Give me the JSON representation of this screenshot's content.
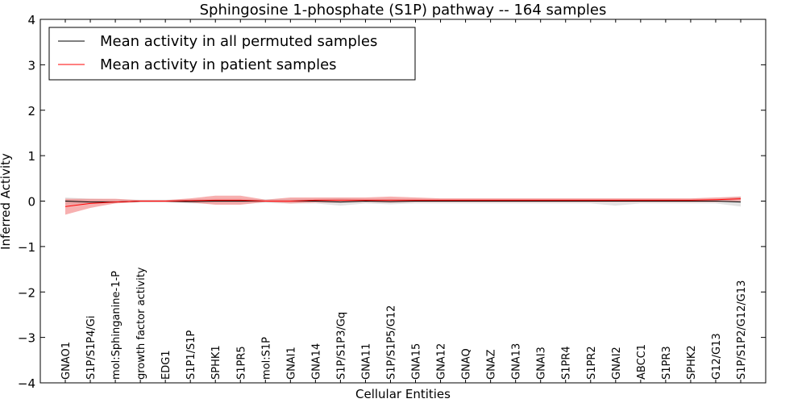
{
  "chart_data": {
    "type": "line",
    "title": "Sphingosine 1-phosphate (S1P) pathway -- 164 samples",
    "xlabel": "Cellular Entities",
    "ylabel": "Inferred Activity",
    "ylim": [
      -4,
      4
    ],
    "yticks": [
      "4",
      "3",
      "2",
      "1",
      "0",
      "−1",
      "−2",
      "−3",
      "−4"
    ],
    "categories": [
      "GNAO1",
      "S1P/S1P4/Gi",
      "mol:Sphinganine-1-P",
      "growth factor activity",
      "EDG1",
      "S1P1/S1P",
      "SPHK1",
      "S1PR5",
      "mol:S1P",
      "GNAI1",
      "GNA14",
      "S1P/S1P3/Gq",
      "GNA11",
      "S1P/S1P5/G12",
      "GNA15",
      "GNA12",
      "GNAQ",
      "GNAZ",
      "GNA13",
      "GNAI3",
      "S1PR4",
      "S1PR2",
      "GNAI2",
      "ABCC1",
      "S1PR3",
      "SPHK2",
      "G12/G13",
      "S1P/S1P2/G12/G13"
    ],
    "grid": false,
    "legend_position": "top-left",
    "series": [
      {
        "name": "Mean activity in all permuted samples",
        "color": "#000000",
        "fill": "#b0b0b0",
        "values": [
          0.0,
          -0.02,
          -0.02,
          0.0,
          0.0,
          -0.01,
          0.0,
          0.0,
          0.0,
          0.0,
          0.0,
          -0.02,
          0.0,
          -0.01,
          0.0,
          0.0,
          0.0,
          0.0,
          0.0,
          0.0,
          0.0,
          0.0,
          0.0,
          0.0,
          0.0,
          0.0,
          0.0,
          -0.02
        ],
        "lower": [
          -0.08,
          -0.06,
          -0.04,
          -0.03,
          -0.03,
          -0.05,
          -0.05,
          -0.05,
          -0.04,
          -0.05,
          -0.05,
          -0.1,
          -0.05,
          -0.07,
          -0.05,
          -0.05,
          -0.05,
          -0.05,
          -0.05,
          -0.05,
          -0.05,
          -0.05,
          -0.1,
          -0.05,
          -0.05,
          -0.05,
          -0.05,
          -0.12
        ],
        "upper": [
          0.08,
          0.05,
          0.04,
          0.03,
          0.03,
          0.04,
          0.05,
          0.05,
          0.04,
          0.05,
          0.05,
          0.06,
          0.05,
          0.05,
          0.05,
          0.05,
          0.05,
          0.05,
          0.05,
          0.05,
          0.05,
          0.05,
          0.05,
          0.05,
          0.05,
          0.05,
          0.05,
          0.1
        ]
      },
      {
        "name": "Mean activity in patient samples",
        "color": "#ff0000",
        "fill": "#f07070",
        "values": [
          -0.12,
          -0.05,
          -0.02,
          0.0,
          0.0,
          0.01,
          0.02,
          0.02,
          0.0,
          0.0,
          0.02,
          0.02,
          0.02,
          0.02,
          0.02,
          0.02,
          0.02,
          0.02,
          0.02,
          0.02,
          0.02,
          0.02,
          0.02,
          0.02,
          0.02,
          0.02,
          0.03,
          0.05
        ],
        "lower": [
          -0.3,
          -0.15,
          -0.05,
          -0.02,
          -0.02,
          -0.03,
          -0.08,
          -0.08,
          -0.02,
          -0.05,
          -0.03,
          -0.03,
          -0.02,
          -0.03,
          -0.02,
          -0.02,
          -0.02,
          -0.02,
          -0.02,
          -0.02,
          -0.02,
          -0.02,
          -0.02,
          -0.02,
          -0.02,
          -0.02,
          -0.02,
          0.0
        ],
        "upper": [
          0.05,
          0.05,
          0.05,
          0.02,
          0.02,
          0.06,
          0.12,
          0.12,
          0.03,
          0.08,
          0.08,
          0.08,
          0.08,
          0.1,
          0.08,
          0.06,
          0.06,
          0.06,
          0.06,
          0.06,
          0.06,
          0.06,
          0.06,
          0.06,
          0.06,
          0.06,
          0.08,
          0.1
        ]
      }
    ]
  }
}
